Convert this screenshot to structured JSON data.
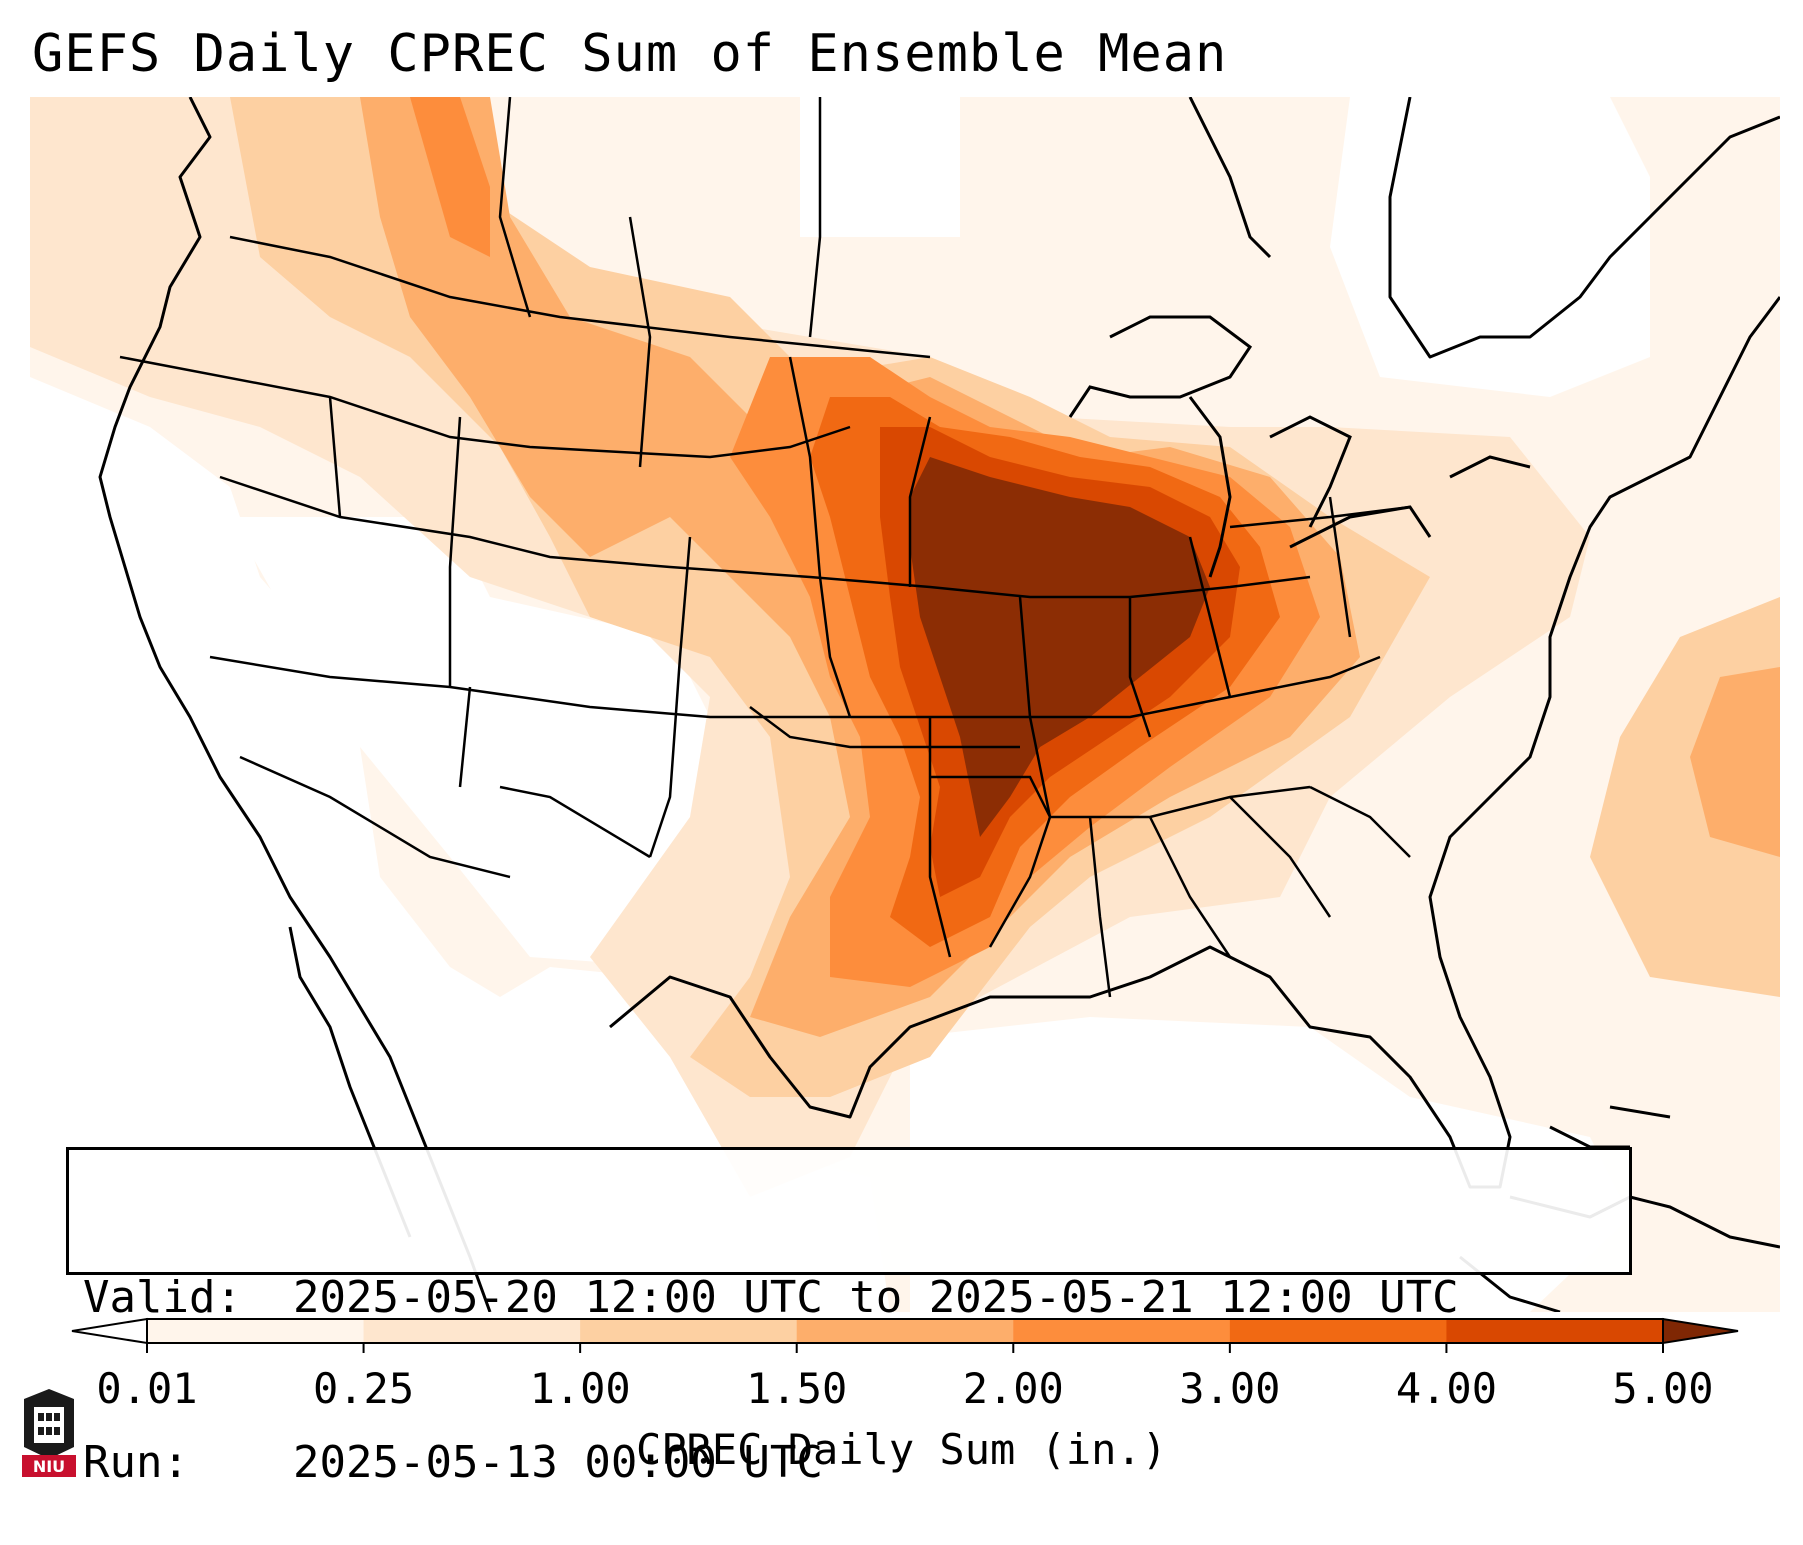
{
  "header": {
    "title": "GEFS Daily CPREC Sum of Ensemble Mean"
  },
  "info": {
    "valid_label": "Valid:",
    "valid_value": "2025-05-20 12:00 UTC to 2025-05-21 12:00 UTC",
    "run_label": "Run:",
    "run_value": "2025-05-13 00:00 UTC"
  },
  "colorbar": {
    "label": "CPREC Daily Sum (in.)",
    "ticks": [
      "0.01",
      "0.25",
      "1.00",
      "1.50",
      "2.00",
      "3.00",
      "4.00",
      "5.00"
    ],
    "colors": [
      "#fff5eb",
      "#fee6ce",
      "#fdd0a2",
      "#fdae6b",
      "#fd8d3c",
      "#f16913",
      "#d94801",
      "#8c2d04"
    ],
    "under_color": "#ffffff",
    "over_color": "#7f2704"
  },
  "logo": {
    "text": "NIU",
    "color": "#c8102e"
  },
  "colors": {
    "frame": "#000000",
    "land_default": "#ffffff",
    "boundary": "#000000"
  }
}
